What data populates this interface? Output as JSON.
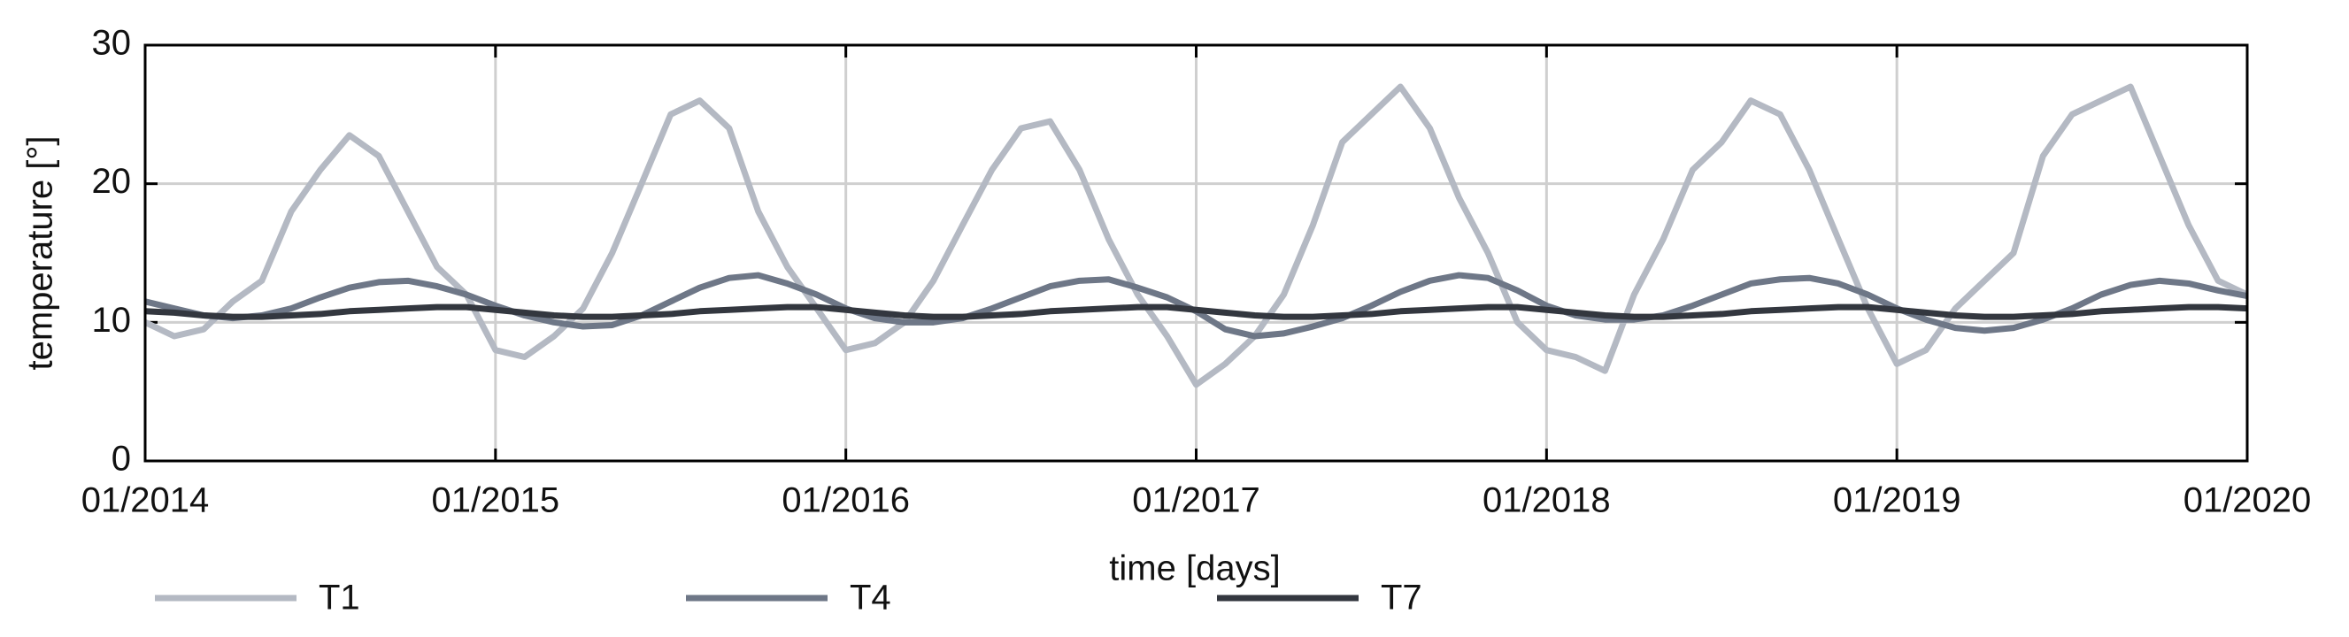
{
  "chart_data": {
    "type": "line",
    "xlabel": "time [days]",
    "ylabel": "temperature [°]",
    "xlim": [
      2014,
      2020
    ],
    "ylim": [
      0,
      30
    ],
    "xticks": [
      {
        "value": 2014,
        "label": "01/2014"
      },
      {
        "value": 2015,
        "label": "01/2015"
      },
      {
        "value": 2016,
        "label": "01/2016"
      },
      {
        "value": 2017,
        "label": "01/2017"
      },
      {
        "value": 2018,
        "label": "01/2018"
      },
      {
        "value": 2019,
        "label": "01/2019"
      },
      {
        "value": 2020,
        "label": "01/2020"
      }
    ],
    "yticks": [
      0,
      10,
      20,
      30
    ],
    "grid": true,
    "x": [
      2014,
      2014.083,
      2014.167,
      2014.25,
      2014.333,
      2014.417,
      2014.5,
      2014.583,
      2014.667,
      2014.75,
      2014.833,
      2014.917,
      2015,
      2015.083,
      2015.167,
      2015.25,
      2015.333,
      2015.417,
      2015.5,
      2015.583,
      2015.667,
      2015.75,
      2015.833,
      2015.917,
      2016,
      2016.083,
      2016.167,
      2016.25,
      2016.333,
      2016.417,
      2016.5,
      2016.583,
      2016.667,
      2016.75,
      2016.833,
      2016.917,
      2017,
      2017.083,
      2017.167,
      2017.25,
      2017.333,
      2017.417,
      2017.5,
      2017.583,
      2017.667,
      2017.75,
      2017.833,
      2017.917,
      2018,
      2018.083,
      2018.167,
      2018.25,
      2018.333,
      2018.417,
      2018.5,
      2018.583,
      2018.667,
      2018.75,
      2018.833,
      2018.917,
      2019,
      2019.083,
      2019.167,
      2019.25,
      2019.333,
      2019.417,
      2019.5,
      2019.583,
      2019.667,
      2019.75,
      2019.833,
      2019.917,
      2020
    ],
    "series": [
      {
        "name": "T1",
        "color": "#b4b9c3",
        "values": [
          10,
          9,
          9.5,
          11.5,
          13,
          18,
          21,
          23.5,
          22,
          18,
          14,
          12,
          8,
          7.5,
          9,
          11,
          15,
          20,
          25,
          26,
          24,
          18,
          14,
          11,
          8,
          8.5,
          10,
          13,
          17,
          21,
          24,
          24.5,
          21,
          16,
          12,
          9,
          5.5,
          7,
          9,
          12,
          17,
          23,
          25,
          27,
          24,
          19,
          15,
          10,
          8,
          7.5,
          6.5,
          12,
          16,
          21,
          23,
          26,
          25,
          21,
          16,
          11,
          7,
          8,
          11,
          13,
          15,
          22,
          25,
          26,
          27,
          22,
          17,
          13,
          12
        ]
      },
      {
        "name": "T4",
        "color": "#6e7787",
        "values": [
          11.5,
          11,
          10.5,
          10.3,
          10.5,
          11,
          11.8,
          12.5,
          12.9,
          13,
          12.6,
          12,
          11.2,
          10.5,
          10,
          9.7,
          9.8,
          10.5,
          11.5,
          12.5,
          13.2,
          13.4,
          12.8,
          12,
          11,
          10.3,
          10,
          10,
          10.3,
          11,
          11.8,
          12.6,
          13,
          13.1,
          12.5,
          11.8,
          10.8,
          9.5,
          9,
          9.2,
          9.7,
          10.3,
          11.2,
          12.2,
          13,
          13.4,
          13.2,
          12.3,
          11.2,
          10.5,
          10.2,
          10.2,
          10.5,
          11.2,
          12,
          12.8,
          13.1,
          13.2,
          12.8,
          12,
          11,
          10.2,
          9.6,
          9.4,
          9.6,
          10.2,
          11,
          12,
          12.7,
          13,
          12.8,
          12.3,
          11.9
        ]
      },
      {
        "name": "T7",
        "color": "#33373f",
        "values": [
          10.8,
          10.7,
          10.5,
          10.4,
          10.4,
          10.5,
          10.6,
          10.8,
          10.9,
          11,
          11.1,
          11.1,
          10.9,
          10.7,
          10.5,
          10.4,
          10.4,
          10.5,
          10.6,
          10.8,
          10.9,
          11,
          11.1,
          11.1,
          10.9,
          10.7,
          10.5,
          10.4,
          10.4,
          10.5,
          10.6,
          10.8,
          10.9,
          11,
          11.1,
          11.1,
          10.9,
          10.7,
          10.5,
          10.4,
          10.4,
          10.5,
          10.6,
          10.8,
          10.9,
          11,
          11.1,
          11.1,
          10.9,
          10.7,
          10.5,
          10.4,
          10.4,
          10.5,
          10.6,
          10.8,
          10.9,
          11,
          11.1,
          11.1,
          10.9,
          10.7,
          10.5,
          10.4,
          10.4,
          10.5,
          10.6,
          10.8,
          10.9,
          11,
          11.1,
          11.1,
          11
        ]
      }
    ]
  }
}
